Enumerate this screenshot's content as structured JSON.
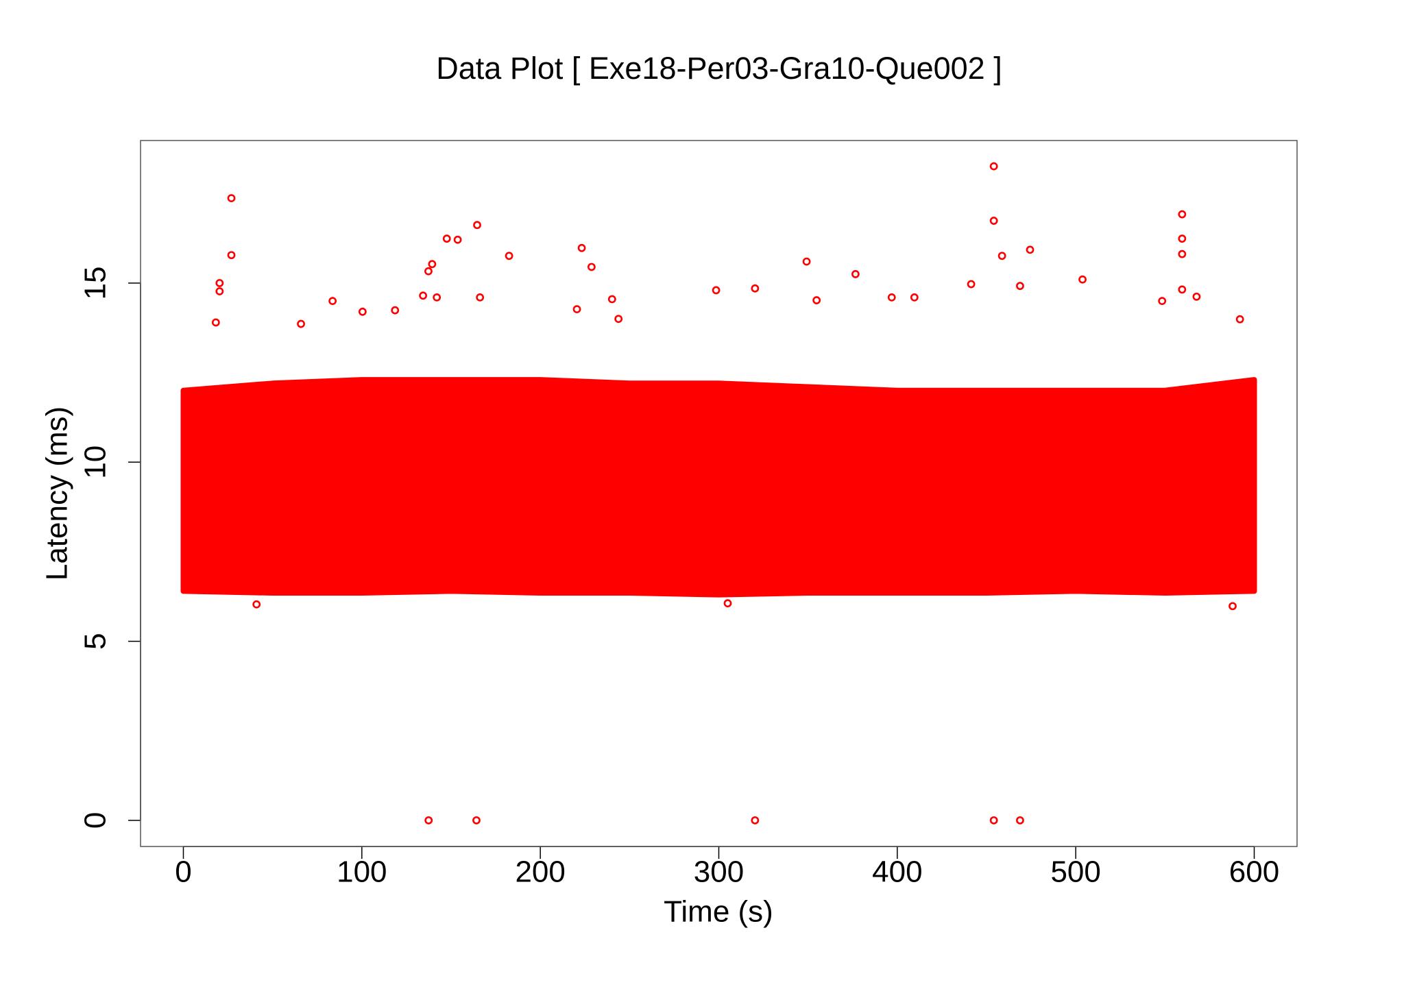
{
  "chart_data": {
    "type": "scatter",
    "title": "Data Plot [ Exe18-Per03-Gra10-Que002 ]",
    "x_label": "Time (s)",
    "y_label": "Latency (ms)",
    "color": "#ff0000",
    "xlim": [
      -24,
      624
    ],
    "ylim": [
      -0.73,
      18.98
    ],
    "xticks": [
      0,
      100,
      200,
      300,
      400,
      500,
      600
    ],
    "yticks": [
      0,
      5,
      10,
      15
    ],
    "envelope": {
      "x": [
        0,
        50,
        100,
        150,
        200,
        250,
        300,
        350,
        400,
        450,
        500,
        550,
        600
      ],
      "low": [
        6.4,
        6.35,
        6.35,
        6.4,
        6.35,
        6.35,
        6.3,
        6.35,
        6.35,
        6.35,
        6.4,
        6.35,
        6.4
      ],
      "high": [
        12.0,
        12.2,
        12.3,
        12.3,
        12.3,
        12.2,
        12.2,
        12.1,
        12.0,
        12.0,
        12.0,
        12.0,
        12.3
      ]
    },
    "x": [
      26.9,
      26.9,
      20.3,
      20.3,
      18.2,
      65.9,
      83.6,
      100.4,
      118.6,
      134.3,
      137.3,
      139.4,
      142,
      147.6,
      153.7,
      164.6,
      166.2,
      182.5,
      220.5,
      223.2,
      228.7,
      240.2,
      243.8,
      298.5,
      320.3,
      349.2,
      354.8,
      376.6,
      396.9,
      409.6,
      441.4,
      454.1,
      454.1,
      458.7,
      468.8,
      474.4,
      503.8,
      548.4,
      559.6,
      559.6,
      559.6,
      559.6,
      567.7,
      592,
      137.4,
      164.2,
      320.3,
      454.1,
      468.8,
      587.9,
      41,
      305
    ],
    "values": [
      17.37,
      15.78,
      15.0,
      14.77,
      13.9,
      13.86,
      14.5,
      14.2,
      14.24,
      14.65,
      15.33,
      15.53,
      14.6,
      16.24,
      16.21,
      16.62,
      14.6,
      15.76,
      14.27,
      15.98,
      15.45,
      14.55,
      14.0,
      14.8,
      14.85,
      15.6,
      14.52,
      15.25,
      14.6,
      14.6,
      14.97,
      18.26,
      16.74,
      15.76,
      14.92,
      15.93,
      15.1,
      14.5,
      16.92,
      16.24,
      15.81,
      14.82,
      14.62,
      13.99,
      0,
      0,
      0,
      0,
      0,
      5.98,
      6.03,
      6.06
    ]
  }
}
